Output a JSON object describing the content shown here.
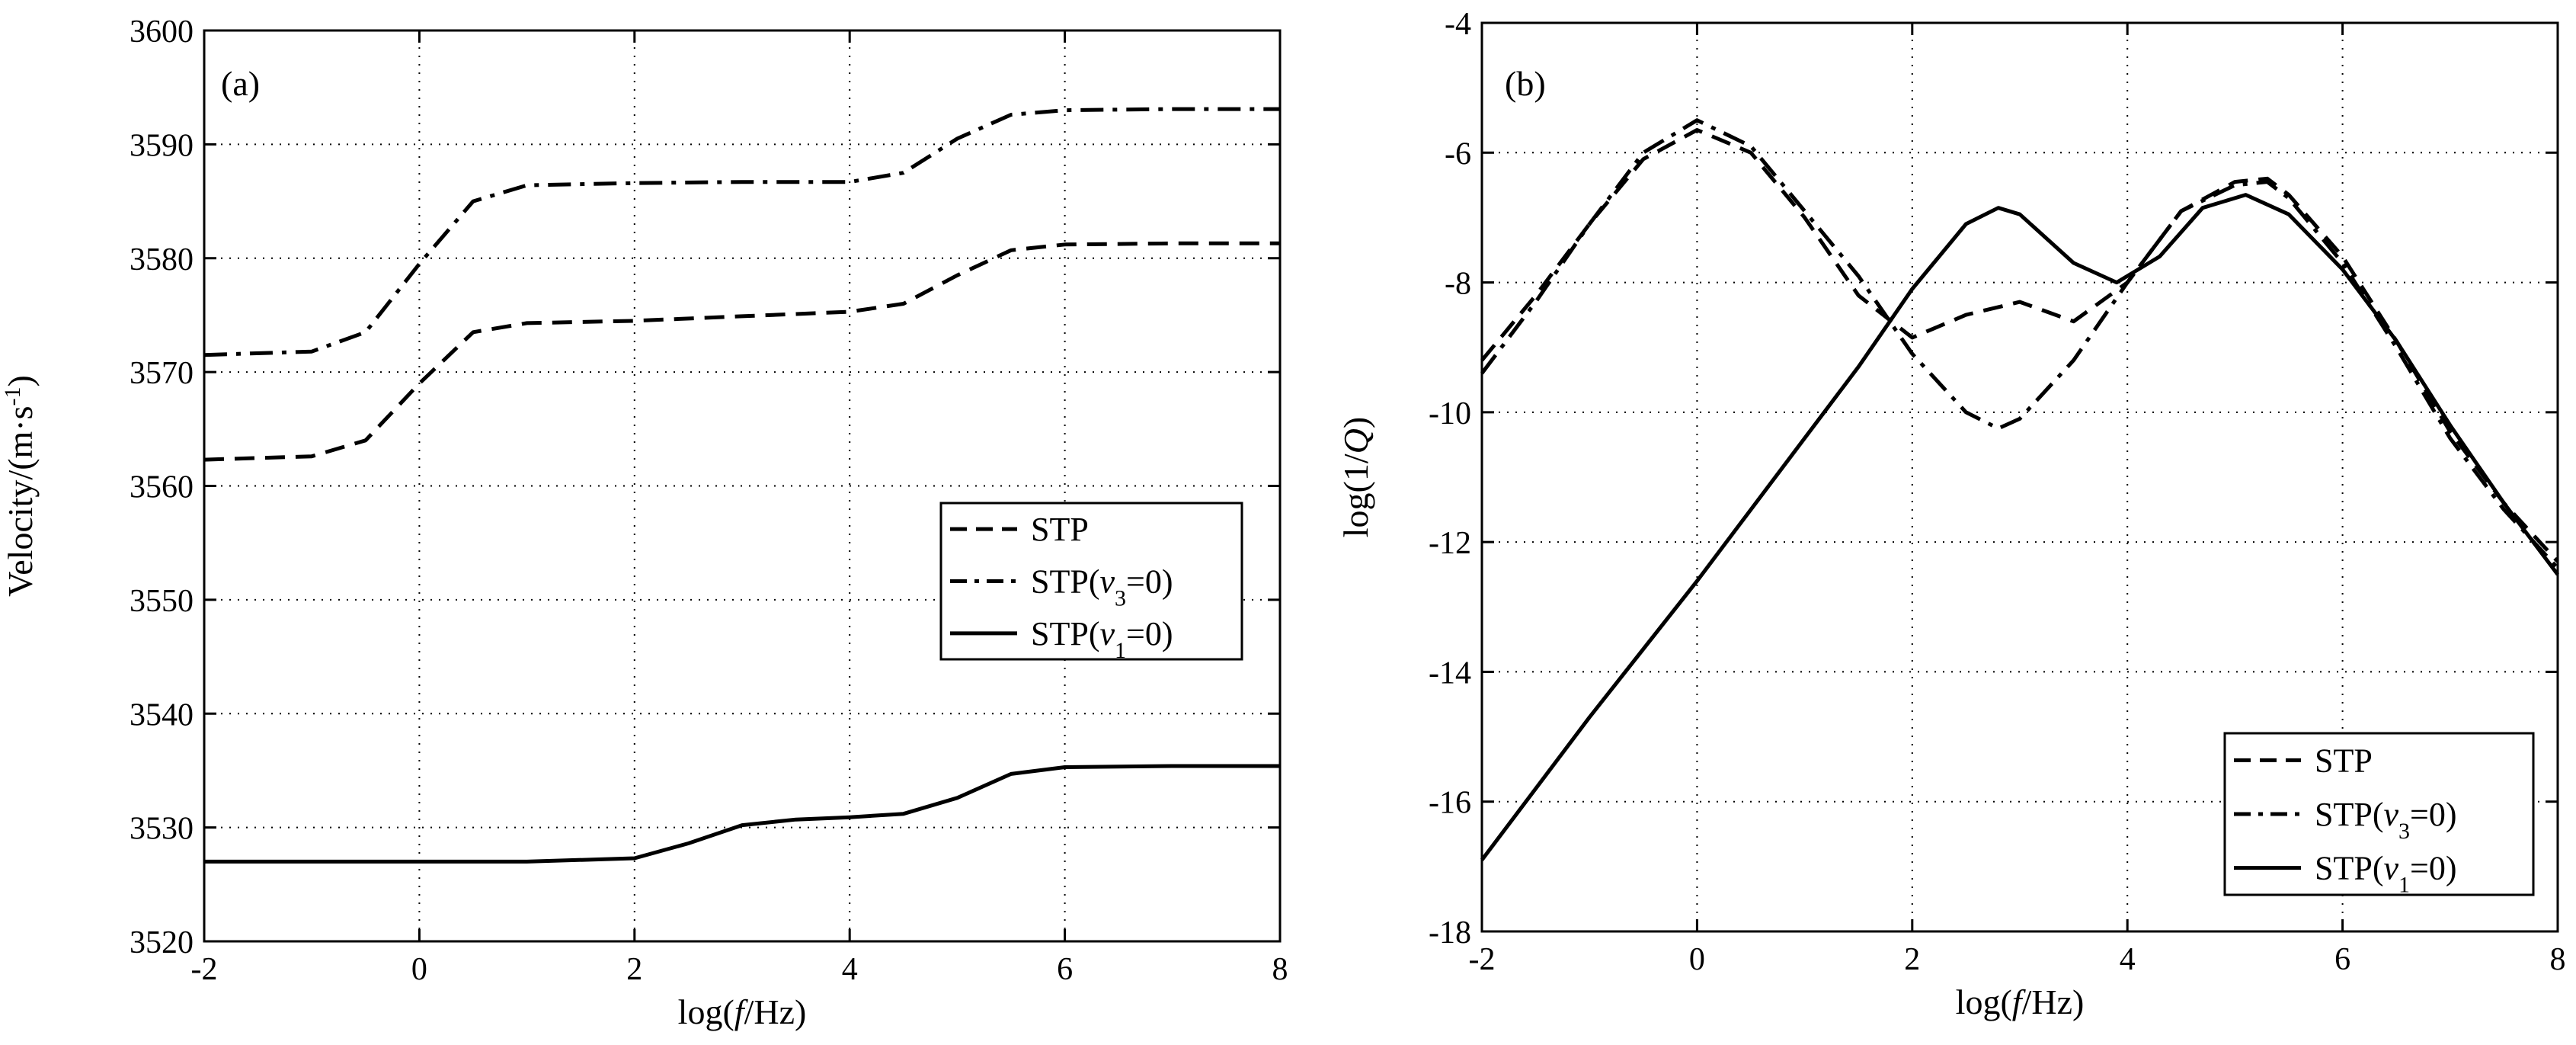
{
  "chart_data": [
    {
      "type": "line",
      "panel_label": "(a)",
      "xlabel": "log(f/Hz)",
      "xlabel_parts": [
        "log(",
        "f",
        "/Hz)"
      ],
      "ylabel": "Velocity/(m·s-1)",
      "ylabel_parts": [
        "Velocity/(m·s",
        "-1",
        ")"
      ],
      "xlim": [
        -2,
        8
      ],
      "ylim": [
        3520,
        3600
      ],
      "xticks": [
        -2,
        0,
        2,
        4,
        6,
        8
      ],
      "yticks": [
        3520,
        3530,
        3540,
        3550,
        3560,
        3570,
        3580,
        3590,
        3600
      ],
      "grid": true,
      "legend_position": "right-middle",
      "series": [
        {
          "name": "STP",
          "legend_parts": [
            "STP"
          ],
          "style": "dashed",
          "x": [
            -2,
            -1,
            -0.5,
            0,
            0.5,
            1,
            2,
            3,
            4,
            4.5,
            5,
            5.5,
            6,
            7,
            8
          ],
          "y": [
            3562.3,
            3562.6,
            3564,
            3569,
            3573.5,
            3574.3,
            3574.5,
            3574.9,
            3575.3,
            3576,
            3578.5,
            3580.7,
            3581.2,
            3581.3,
            3581.3
          ]
        },
        {
          "name": "STP(v3=0)",
          "legend_parts": [
            "STP(",
            "v",
            "3",
            "=0)"
          ],
          "style": "dashdot",
          "x": [
            -2,
            -1,
            -0.5,
            0,
            0.5,
            1,
            2,
            3,
            4,
            4.5,
            5,
            5.5,
            6,
            7,
            8
          ],
          "y": [
            3571.5,
            3571.8,
            3573.5,
            3579.5,
            3585,
            3586.4,
            3586.6,
            3586.7,
            3586.7,
            3587.5,
            3590.5,
            3592.6,
            3593,
            3593.1,
            3593.1
          ]
        },
        {
          "name": "STP(v1=0)",
          "legend_parts": [
            "STP(",
            "v",
            "1",
            "=0)"
          ],
          "style": "solid",
          "x": [
            -2,
            0,
            1,
            2,
            2.5,
            3,
            3.5,
            4,
            4.5,
            5,
            5.5,
            6,
            7,
            8
          ],
          "y": [
            3527,
            3527,
            3527,
            3527.3,
            3528.6,
            3530.2,
            3530.7,
            3530.9,
            3531.2,
            3532.6,
            3534.7,
            3535.3,
            3535.4,
            3535.4
          ]
        }
      ]
    },
    {
      "type": "line",
      "panel_label": "(b)",
      "xlabel": "log(f/Hz)",
      "xlabel_parts": [
        "log(",
        "f",
        "/Hz)"
      ],
      "ylabel": "log(1/Q)",
      "ylabel_parts": [
        "log(1/",
        "Q",
        ")"
      ],
      "xlim": [
        -2,
        8
      ],
      "ylim": [
        -18,
        -4
      ],
      "xticks": [
        -2,
        0,
        2,
        4,
        6,
        8
      ],
      "yticks": [
        -18,
        -16,
        -14,
        -12,
        -10,
        -8,
        -6,
        -4
      ],
      "grid": true,
      "legend_position": "bottom-right",
      "series": [
        {
          "name": "STP",
          "legend_parts": [
            "STP"
          ],
          "style": "dashed",
          "x": [
            -2,
            -1.5,
            -1,
            -0.5,
            0,
            0.5,
            1,
            1.5,
            2,
            2.5,
            3,
            3.5,
            4,
            4.5,
            5,
            5.3,
            5.5,
            6,
            6.5,
            7,
            7.5,
            8
          ],
          "y": [
            -9.2,
            -8.2,
            -7.1,
            -6.1,
            -5.65,
            -6.0,
            -7.0,
            -8.2,
            -8.85,
            -8.5,
            -8.3,
            -8.6,
            -8.0,
            -6.9,
            -6.45,
            -6.4,
            -6.65,
            -7.6,
            -8.9,
            -10.3,
            -11.4,
            -12.3
          ]
        },
        {
          "name": "STP(v3=0)",
          "legend_parts": [
            "STP(",
            "v",
            "3",
            "=0)"
          ],
          "style": "dashdot",
          "x": [
            -2,
            -1.5,
            -1,
            -0.5,
            0,
            0.5,
            1,
            1.5,
            2,
            2.5,
            2.8,
            3,
            3.5,
            4,
            4.5,
            5,
            5.3,
            5.5,
            6,
            6.5,
            7,
            7.5,
            8
          ],
          "y": [
            -9.4,
            -8.3,
            -7.1,
            -6.0,
            -5.5,
            -5.9,
            -6.9,
            -7.9,
            -9.1,
            -10.0,
            -10.25,
            -10.1,
            -9.2,
            -8.0,
            -6.9,
            -6.5,
            -6.45,
            -6.7,
            -7.7,
            -9.0,
            -10.4,
            -11.5,
            -12.4
          ]
        },
        {
          "name": "STP(v1=0)",
          "legend_parts": [
            "STP(",
            "v",
            "1",
            "=0)"
          ],
          "style": "solid",
          "x": [
            -2,
            -1,
            0,
            1,
            1.5,
            2,
            2.5,
            2.8,
            3,
            3.5,
            3.9,
            4.3,
            4.7,
            5.1,
            5.5,
            6,
            6.5,
            7,
            7.5,
            8
          ],
          "y": [
            -16.9,
            -14.7,
            -12.6,
            -10.4,
            -9.3,
            -8.1,
            -7.1,
            -6.85,
            -6.95,
            -7.7,
            -8.0,
            -7.6,
            -6.85,
            -6.65,
            -6.95,
            -7.8,
            -8.9,
            -10.2,
            -11.4,
            -12.5
          ]
        }
      ]
    }
  ]
}
